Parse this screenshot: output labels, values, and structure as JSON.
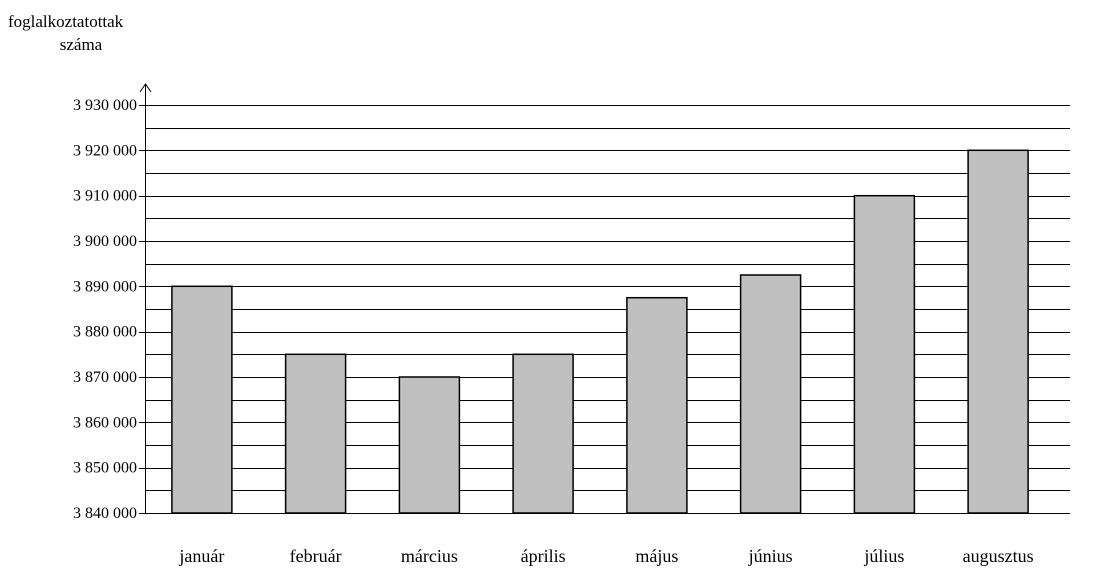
{
  "chart_data": {
    "type": "bar",
    "title": "",
    "ylabel": [
      "foglalkoztatottak",
      "száma"
    ],
    "xlabel": "",
    "categories": [
      "január",
      "február",
      "március",
      "április",
      "május",
      "június",
      "július",
      "augusztus"
    ],
    "values": [
      3890000,
      3875000,
      3870000,
      3875000,
      3887500,
      3892500,
      3910000,
      3920000
    ],
    "ylim": [
      3840000,
      3930000
    ],
    "yticks": [
      3840000,
      3850000,
      3860000,
      3870000,
      3880000,
      3890000,
      3900000,
      3910000,
      3920000,
      3930000
    ],
    "ytick_labels": [
      "3 840 000",
      "3 850 000",
      "3 860 000",
      "3 870 000",
      "3 880 000",
      "3 890 000",
      "3 900 000",
      "3 910 000",
      "3 920 000",
      "3 930 000"
    ],
    "minor_grid_step": 5000,
    "grid": true,
    "colors": {
      "bar_fill": "#c0c0c0",
      "bar_stroke": "#000000",
      "grid": "#000000",
      "axis": "#000000"
    }
  }
}
